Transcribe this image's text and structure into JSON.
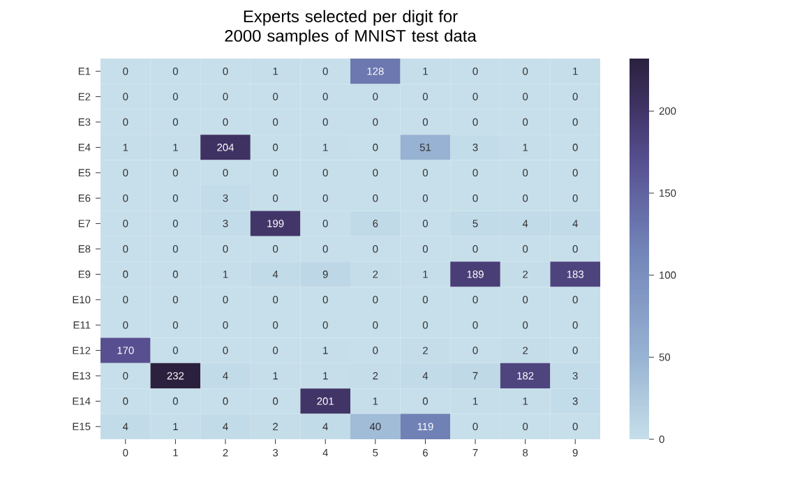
{
  "chart_data": {
    "type": "heatmap",
    "title": "Experts selected per digit for 2000 samples of MNIST test data",
    "categories": [
      "0",
      "1",
      "2",
      "3",
      "4",
      "5",
      "6",
      "7",
      "8",
      "9"
    ],
    "y_categories": [
      "E1",
      "E2",
      "E3",
      "E4",
      "E5",
      "E6",
      "E7",
      "E8",
      "E9",
      "E10",
      "E11",
      "E12",
      "E13",
      "E14",
      "E15"
    ],
    "cells": [
      [
        0,
        0,
        0,
        1,
        0,
        128,
        1,
        0,
        0,
        1
      ],
      [
        0,
        0,
        0,
        0,
        0,
        0,
        0,
        0,
        0,
        0
      ],
      [
        0,
        0,
        0,
        0,
        0,
        0,
        0,
        0,
        0,
        0
      ],
      [
        1,
        1,
        204,
        0,
        1,
        0,
        51,
        3,
        1,
        0
      ],
      [
        0,
        0,
        0,
        0,
        0,
        0,
        0,
        0,
        0,
        0
      ],
      [
        0,
        0,
        3,
        0,
        0,
        0,
        0,
        0,
        0,
        0
      ],
      [
        0,
        0,
        3,
        199,
        0,
        6,
        0,
        5,
        4,
        4
      ],
      [
        0,
        0,
        0,
        0,
        0,
        0,
        0,
        0,
        0,
        0
      ],
      [
        0,
        0,
        1,
        4,
        9,
        2,
        1,
        189,
        2,
        183
      ],
      [
        0,
        0,
        0,
        0,
        0,
        0,
        0,
        0,
        0,
        0
      ],
      [
        0,
        0,
        0,
        0,
        0,
        0,
        0,
        0,
        0,
        0
      ],
      [
        170,
        0,
        0,
        0,
        1,
        0,
        2,
        0,
        2,
        0
      ],
      [
        0,
        232,
        4,
        1,
        1,
        2,
        4,
        7,
        182,
        3
      ],
      [
        0,
        0,
        0,
        0,
        201,
        1,
        0,
        1,
        1,
        3
      ],
      [
        4,
        1,
        4,
        2,
        4,
        40,
        119,
        0,
        0,
        0
      ]
    ],
    "data_labels": true,
    "clim": [
      0,
      232
    ],
    "cticks": [
      0,
      50,
      100,
      150,
      200
    ]
  }
}
